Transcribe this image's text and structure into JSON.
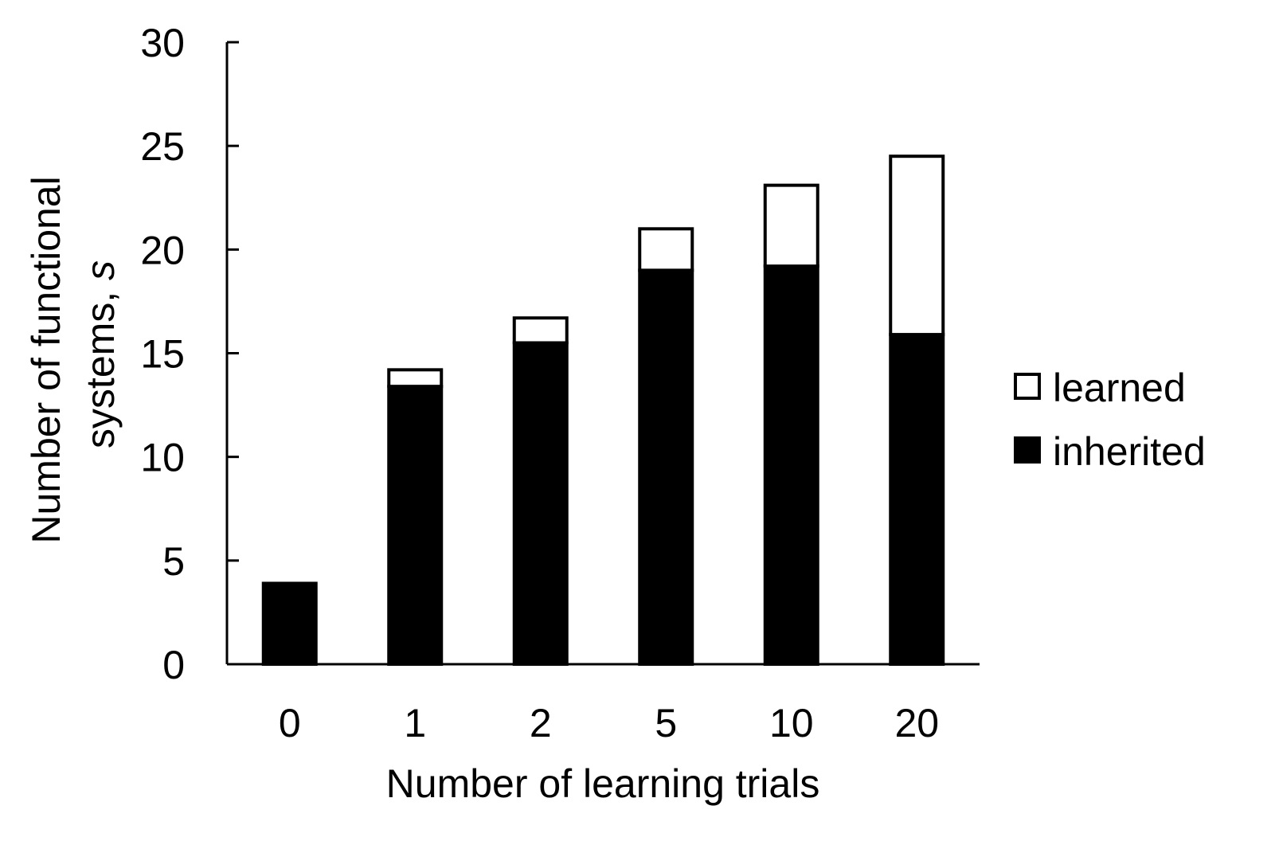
{
  "chart_data": {
    "type": "bar",
    "stacked": true,
    "categories": [
      "0",
      "1",
      "2",
      "5",
      "10",
      "20"
    ],
    "series": [
      {
        "name": "inherited",
        "color": "#000000",
        "values": [
          3.9,
          13.4,
          15.5,
          19.0,
          19.2,
          15.9
        ]
      },
      {
        "name": "learned",
        "color": "#ffffff",
        "values": [
          0.0,
          0.8,
          1.2,
          2.0,
          3.9,
          8.6
        ]
      }
    ],
    "title": "",
    "xlabel": "Number of learning trials",
    "ylabel_lines": [
      "Number of functional",
      "systems, "
    ],
    "ylabel_italic": "s",
    "ylim": [
      0,
      30
    ],
    "yticks": [
      "0",
      "5",
      "10",
      "15",
      "20",
      "25",
      "30"
    ],
    "legend_position": "right",
    "grid": false
  }
}
